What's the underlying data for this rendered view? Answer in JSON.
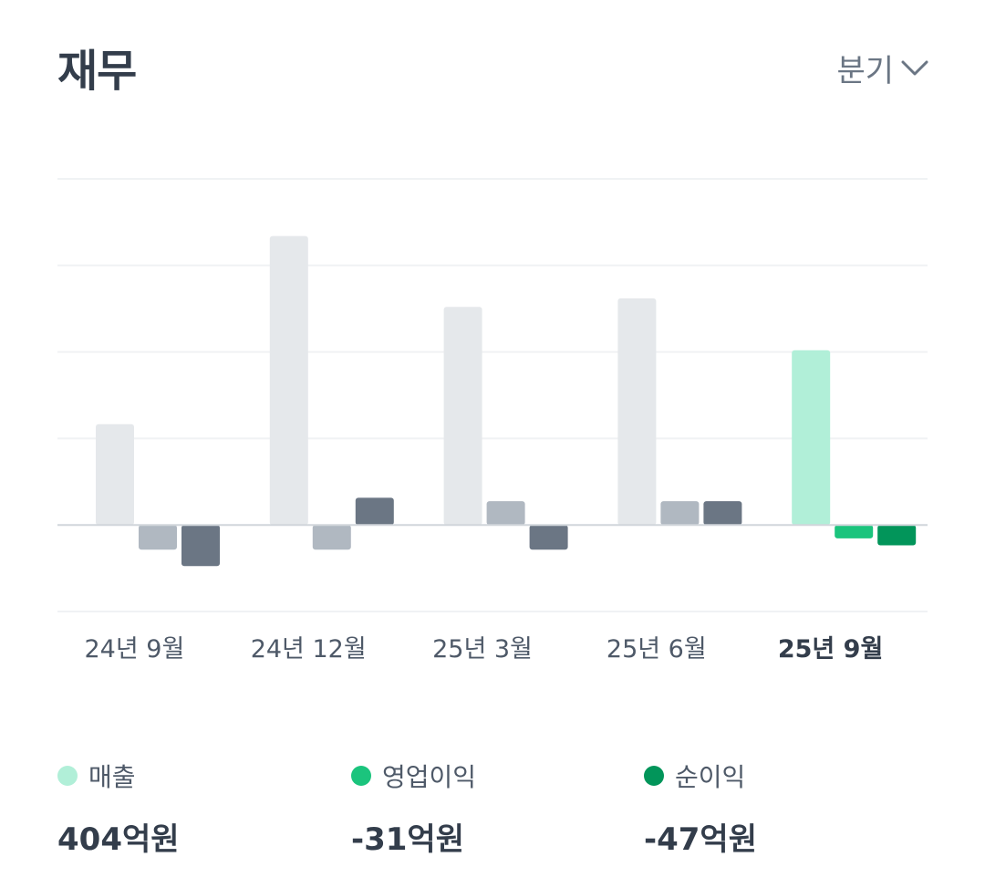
{
  "header": {
    "title": "재무",
    "period_label": "분기",
    "period_icon": "chevron-down-icon"
  },
  "chart_data": {
    "type": "bar",
    "categories": [
      "24년 9월",
      "24년 12월",
      "25년 3월",
      "25년 6월",
      "25년 9월"
    ],
    "highlighted_category": "25년 9월",
    "grid": true,
    "ylim": [
      -200,
      800
    ],
    "series": [
      {
        "name": "매출",
        "values": [
          233,
          668,
          504,
          524,
          404
        ]
      },
      {
        "name": "영업이익",
        "values": [
          -57,
          -57,
          55,
          55,
          -31
        ]
      },
      {
        "name": "순이익",
        "values": [
          -95,
          63,
          -57,
          55,
          -47
        ]
      }
    ],
    "colors": {
      "revenue_muted": "#e5e8eb",
      "operating_muted": "#b0b8c1",
      "net_muted": "#6b7684",
      "revenue_active": "#b1efd8",
      "operating_active": "#1bc47d",
      "net_active": "#02955a",
      "grid": "#f0f2f4",
      "baseline": "#d1d6db"
    }
  },
  "legend": [
    {
      "label": "매출",
      "value": "404억원",
      "color": "#b1efd8"
    },
    {
      "label": "영업이익",
      "value": "-31억원",
      "color": "#1bc47d"
    },
    {
      "label": "순이익",
      "value": "-47억원",
      "color": "#02955a"
    }
  ]
}
